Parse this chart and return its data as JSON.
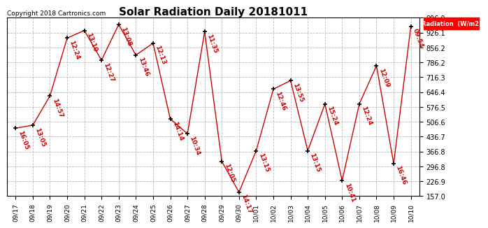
{
  "title": "Solar Radiation Daily 20181011",
  "copyright": "Copyright 2018 Cartronics.com",
  "legend_label": "Radiation  (W/m2)",
  "yticks": [
    157.0,
    226.9,
    296.8,
    366.8,
    436.7,
    506.6,
    576.5,
    646.4,
    716.3,
    786.2,
    856.2,
    926.1,
    996.0
  ],
  "dates": [
    "09/17",
    "09/18",
    "09/19",
    "09/20",
    "09/21",
    "09/22",
    "09/23",
    "09/24",
    "09/25",
    "09/26",
    "09/27",
    "09/28",
    "09/29",
    "09/30",
    "10/01",
    "10/02",
    "10/03",
    "10/04",
    "10/05",
    "10/06",
    "10/07",
    "10/08",
    "10/09",
    "10/10"
  ],
  "values": [
    476,
    490,
    628,
    900,
    936,
    796,
    964,
    820,
    876,
    520,
    450,
    930,
    320,
    175,
    370,
    660,
    700,
    370,
    590,
    230,
    590,
    770,
    310,
    955
  ],
  "time_labels": [
    "16:05",
    "13:05",
    "14:57",
    "12:24",
    "13:10",
    "12:27",
    "13:08",
    "13:46",
    "12:13",
    "14:14",
    "10:34",
    "11:35",
    "12:05",
    "14:17",
    "13:15",
    "12:46",
    "13:55",
    "13:15",
    "15:24",
    "10:41",
    "12:24",
    "12:09",
    "16:46",
    "09:54"
  ],
  "line_color": "#cc0000",
  "marker_color": "#000000",
  "label_color": "#cc0000",
  "bg_color": "#ffffff",
  "grid_color": "#bbbbbb",
  "title_fontsize": 11,
  "label_fontsize": 6.5,
  "copyright_fontsize": 6.5,
  "tick_fontsize": 7.0,
  "xtick_fontsize": 6.5
}
